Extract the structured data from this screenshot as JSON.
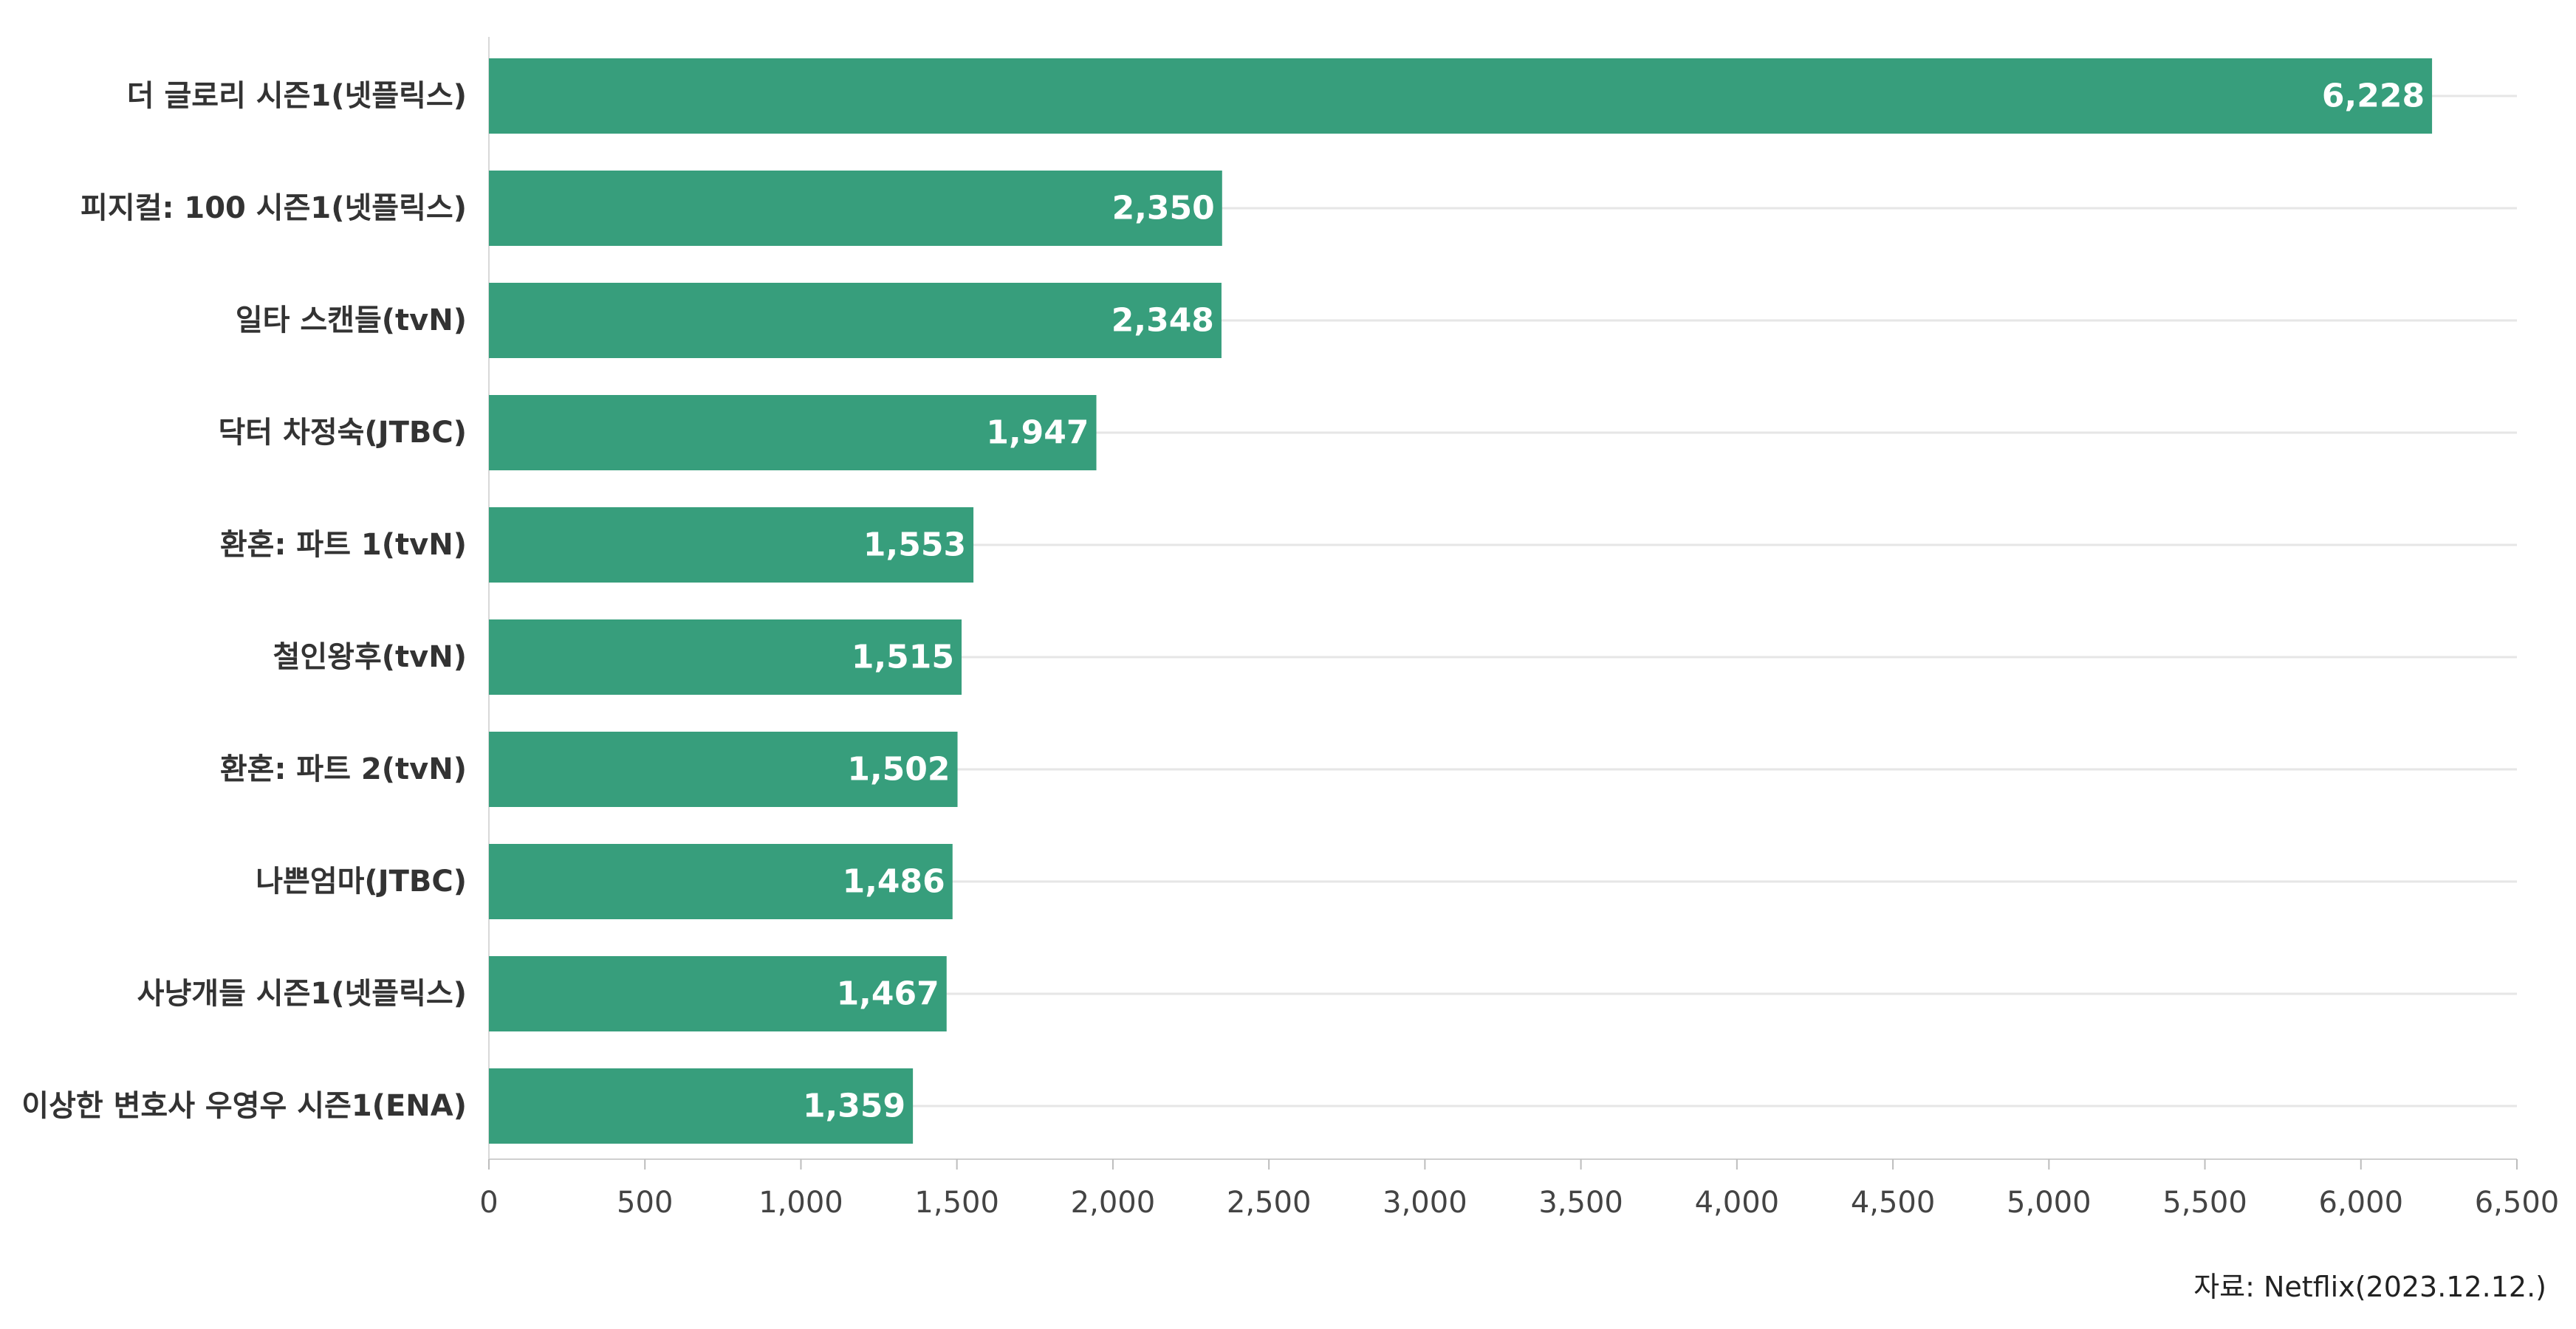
{
  "chart_data": {
    "type": "bar",
    "orientation": "horizontal",
    "categories": [
      "더 글로리 시즌1(넷플릭스)",
      "피지컬: 100 시즌1(넷플릭스)",
      "일타 스캔들(tvN)",
      "닥터 차정숙(JTBC)",
      "환혼: 파트 1(tvN)",
      "철인왕후(tvN)",
      "환혼: 파트 2(tvN)",
      "나쁜엄마(JTBC)",
      "사냥개들 시즌1(넷플릭스)",
      "이상한 변호사 우영우 시즌1(ENA)"
    ],
    "values": [
      6228,
      2350,
      2348,
      1947,
      1553,
      1515,
      1502,
      1486,
      1467,
      1359
    ],
    "data_labels": [
      "6,228",
      "2,350",
      "2,348",
      "1,947",
      "1,553",
      "1,515",
      "1,502",
      "1,486",
      "1,467",
      "1,359"
    ],
    "xlim": [
      0,
      6500
    ],
    "xticks": [
      0,
      500,
      1000,
      1500,
      2000,
      2500,
      3000,
      3500,
      4000,
      4500,
      5000,
      5500,
      6000,
      6500
    ],
    "xtick_labels": [
      "0",
      "500",
      "1,000",
      "1,500",
      "2,000",
      "2,500",
      "3,000",
      "3,500",
      "4,000",
      "4,500",
      "5,000",
      "5,500",
      "6,000",
      "6,500"
    ],
    "grid": true,
    "legend": false,
    "bar_color": "#379e7c",
    "source": "자료: Netflix(2023.12.12.)"
  }
}
